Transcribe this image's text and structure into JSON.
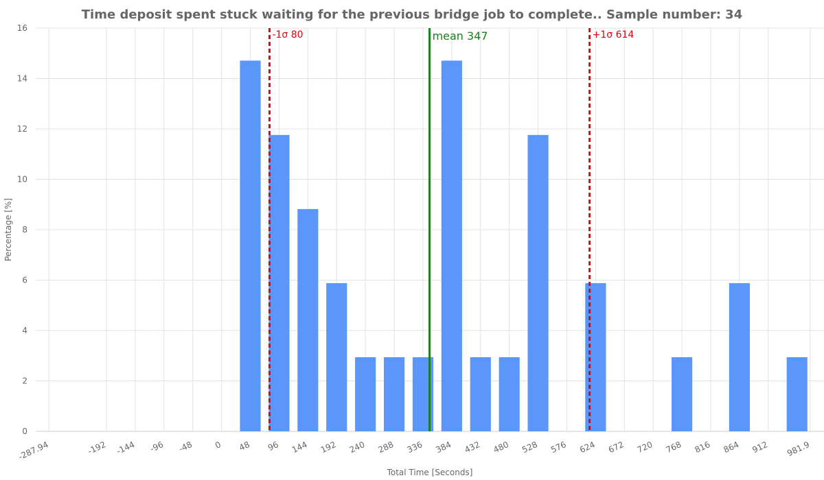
{
  "chart_data": {
    "type": "histogram",
    "title": "Time deposit spent stuck waiting for the previous bridge job to complete.. Sample number: 34",
    "x_label": "Total Time [Seconds]",
    "y_label": "Percentage [%]",
    "bins": [
      24,
      72,
      120,
      168,
      216,
      264,
      312,
      360,
      408,
      456,
      504,
      552,
      600,
      648,
      696,
      744,
      792,
      840,
      888,
      936,
      984
    ],
    "values": [
      14.71,
      11.76,
      8.82,
      5.88,
      2.94,
      2.94,
      2.94,
      14.71,
      2.94,
      2.94,
      11.76,
      0,
      5.88,
      0,
      0,
      2.94,
      0,
      5.88,
      0,
      2.94
    ],
    "color": "#5b97fb",
    "xlim": [
      -310,
      1005
    ],
    "ylim": [
      0,
      16
    ],
    "xticks": [
      -287.94,
      -192,
      -144,
      -96,
      -48,
      0,
      48,
      96,
      144,
      192,
      240,
      288,
      336,
      384,
      432,
      480,
      528,
      576,
      624,
      672,
      720,
      768,
      816,
      864,
      912,
      981.9
    ],
    "yticks": [
      0,
      2,
      4,
      6,
      8,
      10,
      12,
      14,
      16
    ],
    "grid": true,
    "lines": [
      {
        "label": "-1σ 80",
        "value": 80,
        "color": "#e8000b",
        "style": "dashed"
      },
      {
        "label": "mean 347",
        "value": 347,
        "color": "#1a7f1a",
        "style": "solid"
      },
      {
        "label": "+1σ 614",
        "value": 614,
        "color": "#e8000b",
        "style": "dashed"
      }
    ]
  }
}
